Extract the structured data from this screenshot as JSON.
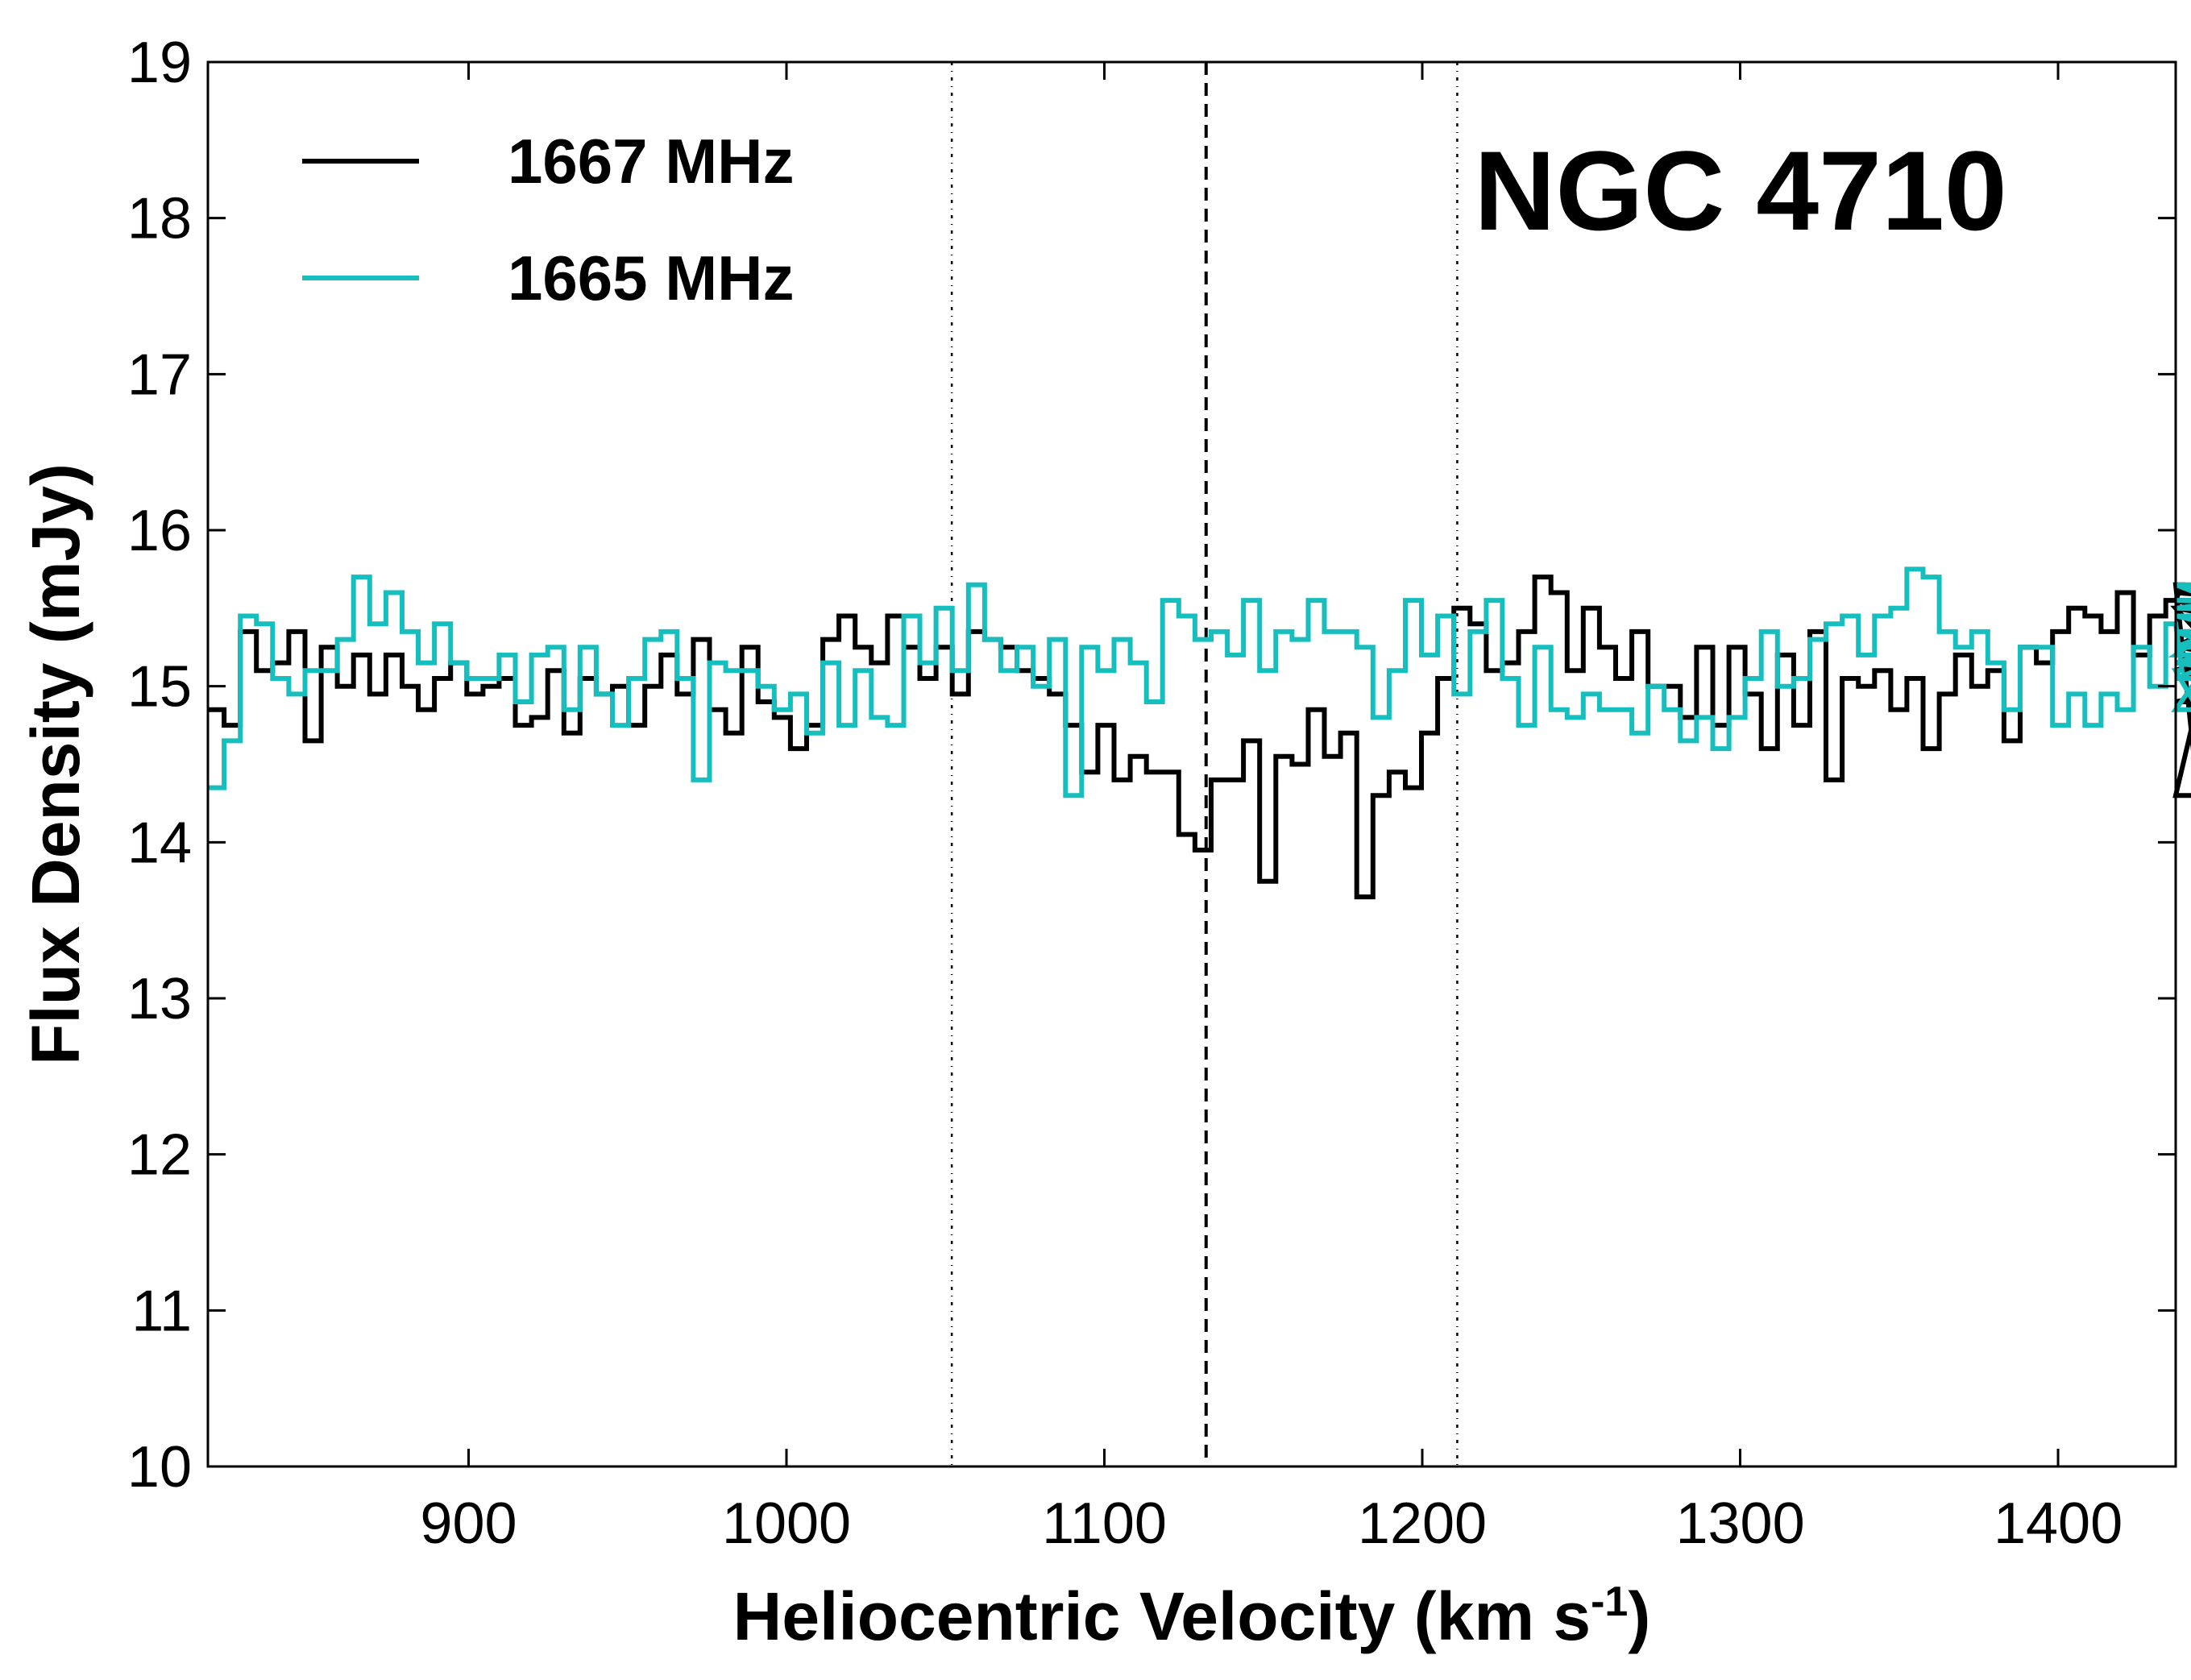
{
  "chart_data": {
    "type": "line",
    "step": true,
    "xlabel": "Heliocentric Velocity (km s",
    "xlabel_sup": "-1",
    "xlabel_close": ")",
    "ylabel": "Flux Density (mJy)",
    "xlim": [
      818,
      1437
    ],
    "ylim": [
      10,
      19
    ],
    "xticks": [
      900,
      1000,
      1100,
      1200,
      1300,
      1400
    ],
    "yticks": [
      10,
      11,
      12,
      13,
      14,
      15,
      16,
      17,
      18,
      19
    ],
    "grid": false,
    "legend_position": "top-left",
    "annotation": "NGC 4710",
    "vlines": [
      {
        "x": 1052,
        "style": "dash-dot"
      },
      {
        "x": 1132,
        "style": "dashed"
      },
      {
        "x": 1211,
        "style": "dash-dot"
      }
    ],
    "x_start": 818,
    "x_step": 5.09,
    "series": [
      {
        "name": "1667 MHz",
        "color": "#000000",
        "values": [
          14.85,
          14.75,
          15.35,
          15.1,
          15.15,
          15.35,
          14.65,
          15.25,
          15.0,
          15.2,
          14.95,
          15.2,
          15.0,
          14.85,
          15.05,
          15.15,
          14.95,
          15.0,
          15.05,
          14.75,
          14.8,
          15.1,
          14.7,
          15.05,
          14.95,
          15.0,
          14.75,
          15.0,
          15.2,
          14.95,
          15.3,
          14.85,
          14.7,
          15.25,
          14.9,
          14.8,
          14.6,
          14.75,
          15.3,
          15.45,
          15.25,
          15.15,
          15.45,
          15.25,
          15.05,
          15.25,
          14.95,
          15.35,
          15.3,
          15.25,
          15.1,
          15.05,
          14.95,
          14.75,
          14.45,
          14.75,
          14.4,
          14.55,
          14.45,
          14.45,
          14.05,
          13.95,
          14.4,
          14.4,
          14.65,
          13.75,
          14.55,
          14.5,
          14.85,
          14.55,
          14.7,
          13.65,
          14.3,
          14.45,
          14.35,
          14.7,
          15.05,
          15.5,
          15.4,
          15.1,
          15.15,
          15.35,
          15.7,
          15.6,
          15.1,
          15.5,
          15.25,
          15.05,
          15.35,
          15.0,
          15.0,
          14.8,
          15.25,
          14.75,
          15.25,
          14.95,
          14.6,
          15.2,
          14.75,
          15.35,
          14.4,
          15.05,
          15.0,
          15.1,
          14.85,
          15.05,
          14.6,
          14.95,
          15.2,
          15.0,
          15.1,
          14.65,
          15.25,
          15.15,
          15.35,
          15.5,
          15.45,
          15.35,
          15.6,
          15.2,
          15.45,
          15.55,
          15.65,
          14.3,
          15.35,
          15.25,
          15.5,
          14.9,
          15.05,
          15.15,
          15.1,
          15.25,
          15.1,
          15.6,
          15.5,
          15.25,
          15.55,
          15.1
        ]
      },
      {
        "name": "1665 MHz",
        "color": "#17bebe",
        "values": [
          14.35,
          14.65,
          15.45,
          15.4,
          15.05,
          14.95,
          15.1,
          15.1,
          15.3,
          15.7,
          15.4,
          15.6,
          15.35,
          15.15,
          15.4,
          15.15,
          15.05,
          15.05,
          15.2,
          14.9,
          15.2,
          15.25,
          14.85,
          15.25,
          14.95,
          14.75,
          15.05,
          15.3,
          15.35,
          15.05,
          14.4,
          15.15,
          15.1,
          15.1,
          15.0,
          14.85,
          14.95,
          14.7,
          15.15,
          14.75,
          15.1,
          14.8,
          14.75,
          15.45,
          15.15,
          15.5,
          15.1,
          15.65,
          15.3,
          15.1,
          15.25,
          15.0,
          15.3,
          14.3,
          15.25,
          15.1,
          15.3,
          15.15,
          14.9,
          15.55,
          15.45,
          15.3,
          15.35,
          15.2,
          15.55,
          15.1,
          15.35,
          15.3,
          15.55,
          15.35,
          15.35,
          15.25,
          14.8,
          15.1,
          15.55,
          15.2,
          15.45,
          14.95,
          15.35,
          15.55,
          15.05,
          14.75,
          15.25,
          14.85,
          14.8,
          14.95,
          14.85,
          14.85,
          14.7,
          15.0,
          14.85,
          14.65,
          14.8,
          14.6,
          14.8,
          15.05,
          15.35,
          15.0,
          15.05,
          15.3,
          15.4,
          15.45,
          15.2,
          15.45,
          15.5,
          15.75,
          15.7,
          15.35,
          15.25,
          15.35,
          15.15,
          14.85,
          15.25,
          15.25,
          14.75,
          14.95,
          14.75,
          14.95,
          14.85,
          15.25,
          15.0,
          15.4,
          15.1,
          14.85,
          15.2,
          15.45,
          15.35,
          15.15,
          15.05,
          15.35,
          15.25,
          15.65,
          15.5,
          15.65,
          15.15,
          15.55,
          15.55,
          15.5,
          15.5,
          15.45
        ]
      }
    ]
  }
}
